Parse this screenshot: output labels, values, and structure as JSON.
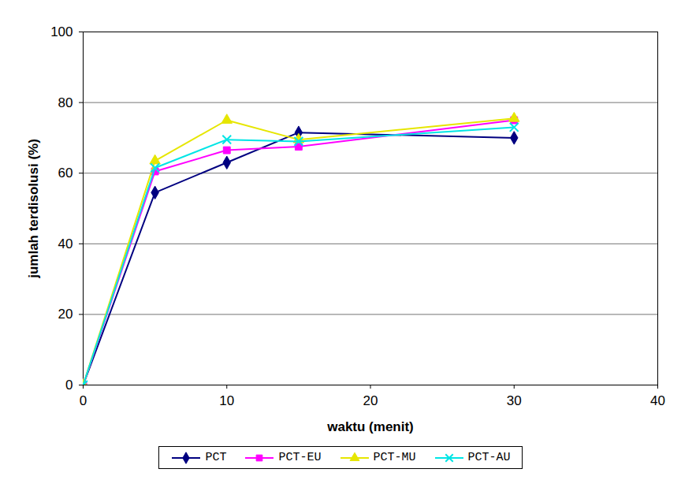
{
  "chart_data": {
    "type": "line",
    "x_label": "waktu (menit)",
    "y_label": "jumlah terdisolusi (%)",
    "x": [
      0,
      5,
      10,
      15,
      30
    ],
    "series": [
      {
        "name": "PCT",
        "color": "#000080",
        "marker": "diamond",
        "values": [
          0,
          54.5,
          63,
          71.5,
          70
        ]
      },
      {
        "name": "PCT-EU",
        "color": "#ff00ff",
        "marker": "square",
        "values": [
          0,
          60.5,
          66.5,
          67.5,
          75
        ]
      },
      {
        "name": "PCT-MU",
        "color": "#e6e600",
        "marker": "triangle",
        "values": [
          0,
          63.5,
          75,
          69.5,
          75.5
        ]
      },
      {
        "name": "PCT-AU",
        "color": "#00e5e5",
        "marker": "times",
        "values": [
          0,
          61.5,
          69.5,
          69,
          73
        ]
      }
    ],
    "xlim": [
      0,
      40
    ],
    "xticks": [
      0,
      10,
      20,
      30,
      40
    ],
    "ylim": [
      0,
      100
    ],
    "yticks": [
      0,
      20,
      40,
      60,
      80,
      100
    ],
    "grid": true,
    "legend": "bottom"
  }
}
